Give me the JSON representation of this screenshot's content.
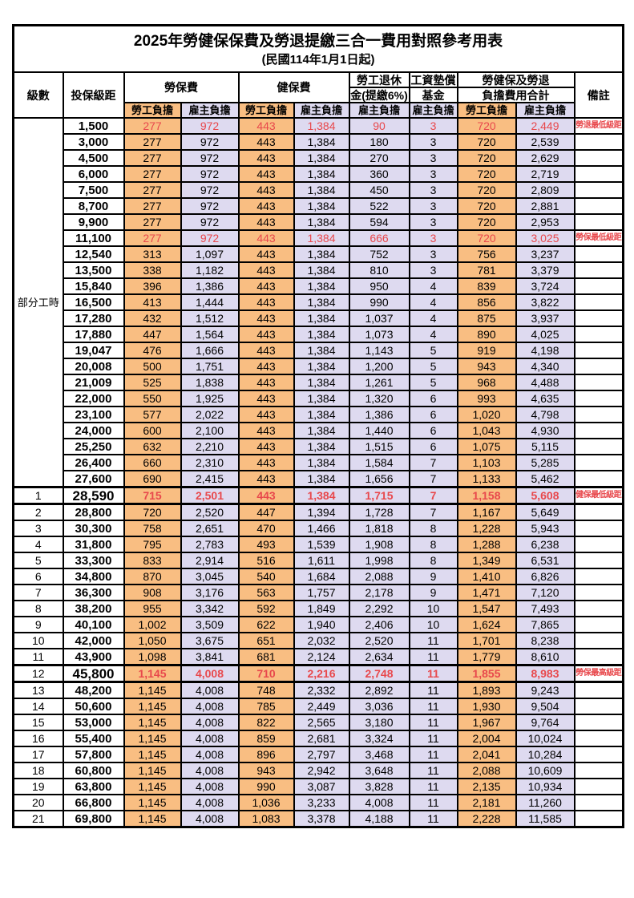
{
  "title": "2025年勞健保保費及勞退提繳三合一費用對照參考用表",
  "subtitle": "(民國114年1月1日起)",
  "colors": {
    "worker_cell_bg": "#f9be82",
    "employer_cell_bg": "#dedaf0",
    "highlight_text": "#e8484c",
    "border": "#000000"
  },
  "header": {
    "level": "級數",
    "bracket": "投保級距",
    "labor_insurance": "勞保費",
    "health_insurance": "健保費",
    "pension_line1": "勞工退休",
    "pension_line2": "金(提繳6%)",
    "wage_fund_line1": "工資墊償",
    "wage_fund_line2": "基金",
    "total_line1": "勞健保及勞退",
    "total_line2": "負擔費用合計",
    "remark": "備註",
    "worker": "勞工負擔",
    "employer": "雇主負擔"
  },
  "part_time_label": "部分工時",
  "rows": [
    {
      "level": "",
      "bracket": "1,500",
      "v": [
        "277",
        "972",
        "443",
        "1,384",
        "90",
        "3",
        "720",
        "2,449"
      ],
      "remark": "勞退最低級距",
      "red": true,
      "emph": false
    },
    {
      "level": "",
      "bracket": "3,000",
      "v": [
        "277",
        "972",
        "443",
        "1,384",
        "180",
        "3",
        "720",
        "2,539"
      ],
      "remark": "",
      "red": false,
      "emph": false
    },
    {
      "level": "",
      "bracket": "4,500",
      "v": [
        "277",
        "972",
        "443",
        "1,384",
        "270",
        "3",
        "720",
        "2,629"
      ],
      "remark": "",
      "red": false,
      "emph": false
    },
    {
      "level": "",
      "bracket": "6,000",
      "v": [
        "277",
        "972",
        "443",
        "1,384",
        "360",
        "3",
        "720",
        "2,719"
      ],
      "remark": "",
      "red": false,
      "emph": false
    },
    {
      "level": "",
      "bracket": "7,500",
      "v": [
        "277",
        "972",
        "443",
        "1,384",
        "450",
        "3",
        "720",
        "2,809"
      ],
      "remark": "",
      "red": false,
      "emph": false
    },
    {
      "level": "",
      "bracket": "8,700",
      "v": [
        "277",
        "972",
        "443",
        "1,384",
        "522",
        "3",
        "720",
        "2,881"
      ],
      "remark": "",
      "red": false,
      "emph": false
    },
    {
      "level": "",
      "bracket": "9,900",
      "v": [
        "277",
        "972",
        "443",
        "1,384",
        "594",
        "3",
        "720",
        "2,953"
      ],
      "remark": "",
      "red": false,
      "emph": false
    },
    {
      "level": "",
      "bracket": "11,100",
      "v": [
        "277",
        "972",
        "443",
        "1,384",
        "666",
        "3",
        "720",
        "3,025"
      ],
      "remark": "勞保最低級距",
      "red": true,
      "emph": false
    },
    {
      "level": "",
      "bracket": "12,540",
      "v": [
        "313",
        "1,097",
        "443",
        "1,384",
        "752",
        "3",
        "756",
        "3,237"
      ],
      "remark": "",
      "red": false,
      "emph": false
    },
    {
      "level": "",
      "bracket": "13,500",
      "v": [
        "338",
        "1,182",
        "443",
        "1,384",
        "810",
        "3",
        "781",
        "3,379"
      ],
      "remark": "",
      "red": false,
      "emph": false
    },
    {
      "level": "",
      "bracket": "15,840",
      "v": [
        "396",
        "1,386",
        "443",
        "1,384",
        "950",
        "4",
        "839",
        "3,724"
      ],
      "remark": "",
      "red": false,
      "emph": false
    },
    {
      "level": "",
      "bracket": "16,500",
      "v": [
        "413",
        "1,444",
        "443",
        "1,384",
        "990",
        "4",
        "856",
        "3,822"
      ],
      "remark": "",
      "red": false,
      "emph": false
    },
    {
      "level": "",
      "bracket": "17,280",
      "v": [
        "432",
        "1,512",
        "443",
        "1,384",
        "1,037",
        "4",
        "875",
        "3,937"
      ],
      "remark": "",
      "red": false,
      "emph": false
    },
    {
      "level": "",
      "bracket": "17,880",
      "v": [
        "447",
        "1,564",
        "443",
        "1,384",
        "1,073",
        "4",
        "890",
        "4,025"
      ],
      "remark": "",
      "red": false,
      "emph": false
    },
    {
      "level": "",
      "bracket": "19,047",
      "v": [
        "476",
        "1,666",
        "443",
        "1,384",
        "1,143",
        "5",
        "919",
        "4,198"
      ],
      "remark": "",
      "red": false,
      "emph": false
    },
    {
      "level": "",
      "bracket": "20,008",
      "v": [
        "500",
        "1,751",
        "443",
        "1,384",
        "1,200",
        "5",
        "943",
        "4,340"
      ],
      "remark": "",
      "red": false,
      "emph": false
    },
    {
      "level": "",
      "bracket": "21,009",
      "v": [
        "525",
        "1,838",
        "443",
        "1,384",
        "1,261",
        "5",
        "968",
        "4,488"
      ],
      "remark": "",
      "red": false,
      "emph": false
    },
    {
      "level": "",
      "bracket": "22,000",
      "v": [
        "550",
        "1,925",
        "443",
        "1,384",
        "1,320",
        "6",
        "993",
        "4,635"
      ],
      "remark": "",
      "red": false,
      "emph": false
    },
    {
      "level": "",
      "bracket": "23,100",
      "v": [
        "577",
        "2,022",
        "443",
        "1,384",
        "1,386",
        "6",
        "1,020",
        "4,798"
      ],
      "remark": "",
      "red": false,
      "emph": false
    },
    {
      "level": "",
      "bracket": "24,000",
      "v": [
        "600",
        "2,100",
        "443",
        "1,384",
        "1,440",
        "6",
        "1,043",
        "4,930"
      ],
      "remark": "",
      "red": false,
      "emph": false
    },
    {
      "level": "",
      "bracket": "25,250",
      "v": [
        "632",
        "2,210",
        "443",
        "1,384",
        "1,515",
        "6",
        "1,075",
        "5,115"
      ],
      "remark": "",
      "red": false,
      "emph": false
    },
    {
      "level": "",
      "bracket": "26,400",
      "v": [
        "660",
        "2,310",
        "443",
        "1,384",
        "1,584",
        "7",
        "1,103",
        "5,285"
      ],
      "remark": "",
      "red": false,
      "emph": false
    },
    {
      "level": "",
      "bracket": "27,600",
      "v": [
        "690",
        "2,415",
        "443",
        "1,384",
        "1,656",
        "7",
        "1,133",
        "5,462"
      ],
      "remark": "",
      "red": false,
      "emph": false
    },
    {
      "level": "1",
      "bracket": "28,590",
      "v": [
        "715",
        "2,501",
        "443",
        "1,384",
        "1,715",
        "7",
        "1,158",
        "5,608"
      ],
      "remark": "健保最低級距",
      "red": true,
      "emph": true
    },
    {
      "level": "2",
      "bracket": "28,800",
      "v": [
        "720",
        "2,520",
        "447",
        "1,394",
        "1,728",
        "7",
        "1,167",
        "5,649"
      ],
      "remark": "",
      "red": false,
      "emph": false
    },
    {
      "level": "3",
      "bracket": "30,300",
      "v": [
        "758",
        "2,651",
        "470",
        "1,466",
        "1,818",
        "8",
        "1,228",
        "5,943"
      ],
      "remark": "",
      "red": false,
      "emph": false
    },
    {
      "level": "4",
      "bracket": "31,800",
      "v": [
        "795",
        "2,783",
        "493",
        "1,539",
        "1,908",
        "8",
        "1,288",
        "6,238"
      ],
      "remark": "",
      "red": false,
      "emph": false
    },
    {
      "level": "5",
      "bracket": "33,300",
      "v": [
        "833",
        "2,914",
        "516",
        "1,611",
        "1,998",
        "8",
        "1,349",
        "6,531"
      ],
      "remark": "",
      "red": false,
      "emph": false
    },
    {
      "level": "6",
      "bracket": "34,800",
      "v": [
        "870",
        "3,045",
        "540",
        "1,684",
        "2,088",
        "9",
        "1,410",
        "6,826"
      ],
      "remark": "",
      "red": false,
      "emph": false
    },
    {
      "level": "7",
      "bracket": "36,300",
      "v": [
        "908",
        "3,176",
        "563",
        "1,757",
        "2,178",
        "9",
        "1,471",
        "7,120"
      ],
      "remark": "",
      "red": false,
      "emph": false
    },
    {
      "level": "8",
      "bracket": "38,200",
      "v": [
        "955",
        "3,342",
        "592",
        "1,849",
        "2,292",
        "10",
        "1,547",
        "7,493"
      ],
      "remark": "",
      "red": false,
      "emph": false
    },
    {
      "level": "9",
      "bracket": "40,100",
      "v": [
        "1,002",
        "3,509",
        "622",
        "1,940",
        "2,406",
        "10",
        "1,624",
        "7,865"
      ],
      "remark": "",
      "red": false,
      "emph": false
    },
    {
      "level": "10",
      "bracket": "42,000",
      "v": [
        "1,050",
        "3,675",
        "651",
        "2,032",
        "2,520",
        "11",
        "1,701",
        "8,238"
      ],
      "remark": "",
      "red": false,
      "emph": false
    },
    {
      "level": "11",
      "bracket": "43,900",
      "v": [
        "1,098",
        "3,841",
        "681",
        "2,124",
        "2,634",
        "11",
        "1,779",
        "8,610"
      ],
      "remark": "",
      "red": false,
      "emph": false
    },
    {
      "level": "12",
      "bracket": "45,800",
      "v": [
        "1,145",
        "4,008",
        "710",
        "2,216",
        "2,748",
        "11",
        "1,855",
        "8,983"
      ],
      "remark": "勞保最高級距",
      "red": true,
      "emph": true
    },
    {
      "level": "13",
      "bracket": "48,200",
      "v": [
        "1,145",
        "4,008",
        "748",
        "2,332",
        "2,892",
        "11",
        "1,893",
        "9,243"
      ],
      "remark": "",
      "red": false,
      "emph": false
    },
    {
      "level": "14",
      "bracket": "50,600",
      "v": [
        "1,145",
        "4,008",
        "785",
        "2,449",
        "3,036",
        "11",
        "1,930",
        "9,504"
      ],
      "remark": "",
      "red": false,
      "emph": false
    },
    {
      "level": "15",
      "bracket": "53,000",
      "v": [
        "1,145",
        "4,008",
        "822",
        "2,565",
        "3,180",
        "11",
        "1,967",
        "9,764"
      ],
      "remark": "",
      "red": false,
      "emph": false
    },
    {
      "level": "16",
      "bracket": "55,400",
      "v": [
        "1,145",
        "4,008",
        "859",
        "2,681",
        "3,324",
        "11",
        "2,004",
        "10,024"
      ],
      "remark": "",
      "red": false,
      "emph": false
    },
    {
      "level": "17",
      "bracket": "57,800",
      "v": [
        "1,145",
        "4,008",
        "896",
        "2,797",
        "3,468",
        "11",
        "2,041",
        "10,284"
      ],
      "remark": "",
      "red": false,
      "emph": false
    },
    {
      "level": "18",
      "bracket": "60,800",
      "v": [
        "1,145",
        "4,008",
        "943",
        "2,942",
        "3,648",
        "11",
        "2,088",
        "10,609"
      ],
      "remark": "",
      "red": false,
      "emph": false
    },
    {
      "level": "19",
      "bracket": "63,800",
      "v": [
        "1,145",
        "4,008",
        "990",
        "3,087",
        "3,828",
        "11",
        "2,135",
        "10,934"
      ],
      "remark": "",
      "red": false,
      "emph": false
    },
    {
      "level": "20",
      "bracket": "66,800",
      "v": [
        "1,145",
        "4,008",
        "1,036",
        "3,233",
        "4,008",
        "11",
        "2,181",
        "11,260"
      ],
      "remark": "",
      "red": false,
      "emph": false
    },
    {
      "level": "21",
      "bracket": "69,800",
      "v": [
        "1,145",
        "4,008",
        "1,083",
        "3,378",
        "4,188",
        "11",
        "2,228",
        "11,585"
      ],
      "remark": "",
      "red": false,
      "emph": false
    }
  ]
}
